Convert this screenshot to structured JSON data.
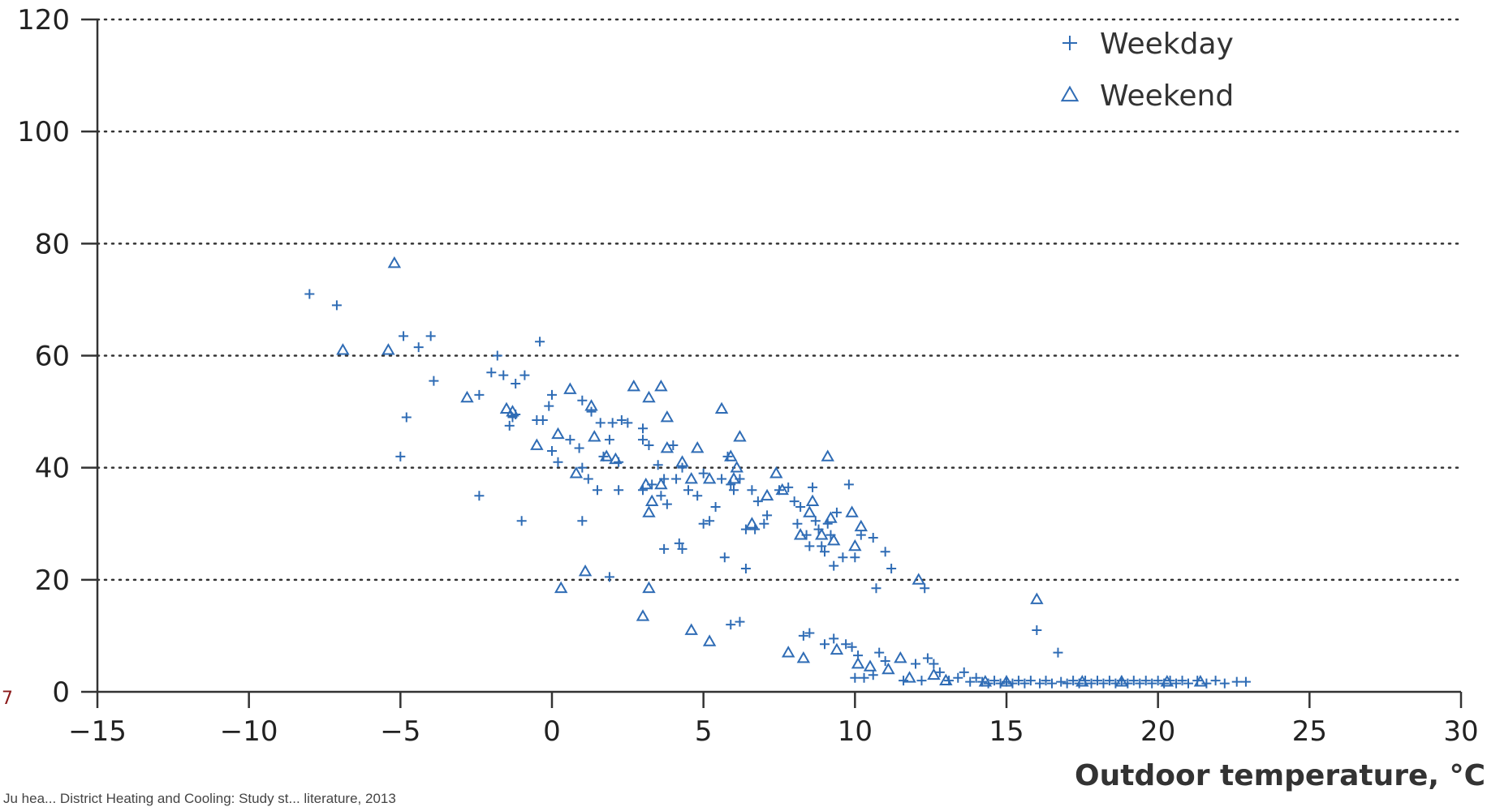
{
  "chart_data": {
    "type": "scatter",
    "title": "",
    "xlabel": "Outdoor temperature, °C",
    "ylabel": "",
    "xlim": [
      -15,
      30
    ],
    "ylim": [
      0,
      120
    ],
    "xticks": [
      -15,
      -10,
      -5,
      0,
      5,
      10,
      15,
      20,
      25,
      30
    ],
    "yticks": [
      0,
      20,
      40,
      60,
      80,
      100,
      120
    ],
    "xtick_labels": [
      "−15",
      "−10",
      "−5",
      "0",
      "5",
      "10",
      "15",
      "20",
      "25",
      "30"
    ],
    "ytick_labels": [
      "0",
      "20",
      "40",
      "60",
      "80",
      "100",
      "120"
    ],
    "grid": "horizontal dotted",
    "legend_position": "top-right",
    "series_color": "#2f6cb5",
    "series": [
      {
        "name": "Weekday",
        "marker": "plus",
        "points": [
          [
            -8.0,
            71
          ],
          [
            -7.1,
            69
          ],
          [
            -4.9,
            63.5
          ],
          [
            -4.4,
            61.5
          ],
          [
            -4.0,
            63.5
          ],
          [
            -3.9,
            55.5
          ],
          [
            -4.8,
            49
          ],
          [
            -5.0,
            42
          ],
          [
            -2.4,
            35
          ],
          [
            -2.4,
            53
          ],
          [
            -1.8,
            60
          ],
          [
            -1.6,
            56.5
          ],
          [
            -2.0,
            57
          ],
          [
            -1.2,
            55
          ],
          [
            -0.9,
            56.5
          ],
          [
            -1.3,
            49
          ],
          [
            -1.2,
            49.5
          ],
          [
            -1.4,
            47.5
          ],
          [
            -1.0,
            30.5
          ],
          [
            -0.4,
            62.5
          ],
          [
            -0.3,
            48.5
          ],
          [
            -0.5,
            48.5
          ],
          [
            -0.1,
            51
          ],
          [
            0.0,
            53
          ],
          [
            0.0,
            43
          ],
          [
            0.2,
            41
          ],
          [
            0.6,
            45
          ],
          [
            0.9,
            43.5
          ],
          [
            1.0,
            30.5
          ],
          [
            1.0,
            52
          ],
          [
            1.3,
            50
          ],
          [
            1.0,
            40
          ],
          [
            1.2,
            38
          ],
          [
            1.5,
            36
          ],
          [
            1.6,
            48
          ],
          [
            1.7,
            42
          ],
          [
            1.9,
            45
          ],
          [
            2.0,
            48
          ],
          [
            2.2,
            41
          ],
          [
            2.3,
            48.5
          ],
          [
            2.2,
            36
          ],
          [
            1.9,
            20.5
          ],
          [
            2.5,
            48
          ],
          [
            3.0,
            47
          ],
          [
            3.0,
            45
          ],
          [
            3.2,
            44
          ],
          [
            3.0,
            36
          ],
          [
            3.3,
            37
          ],
          [
            3.5,
            40.5
          ],
          [
            3.7,
            38
          ],
          [
            3.6,
            35
          ],
          [
            3.8,
            33.5
          ],
          [
            4.0,
            44
          ],
          [
            4.1,
            38
          ],
          [
            4.3,
            40
          ],
          [
            4.5,
            36
          ],
          [
            4.8,
            35
          ],
          [
            5.0,
            39
          ],
          [
            5.0,
            30
          ],
          [
            5.2,
            30.5
          ],
          [
            5.4,
            33
          ],
          [
            5.6,
            38
          ],
          [
            5.8,
            42
          ],
          [
            5.9,
            37
          ],
          [
            6.0,
            36
          ],
          [
            6.2,
            38
          ],
          [
            6.4,
            29
          ],
          [
            6.7,
            29
          ],
          [
            6.6,
            36
          ],
          [
            6.8,
            34
          ],
          [
            7.0,
            30
          ],
          [
            7.1,
            31.5
          ],
          [
            5.7,
            24
          ],
          [
            3.7,
            25.5
          ],
          [
            4.2,
            26.5
          ],
          [
            4.3,
            25.5
          ],
          [
            6.4,
            22
          ],
          [
            5.9,
            12
          ],
          [
            6.2,
            12.5
          ],
          [
            7.5,
            36
          ],
          [
            7.8,
            36.5
          ],
          [
            8.0,
            34
          ],
          [
            8.1,
            30
          ],
          [
            8.2,
            33
          ],
          [
            8.4,
            28
          ],
          [
            8.5,
            26
          ],
          [
            8.6,
            36.5
          ],
          [
            8.7,
            30.5
          ],
          [
            8.8,
            29
          ],
          [
            8.9,
            26
          ],
          [
            9.0,
            25
          ],
          [
            9.1,
            30
          ],
          [
            9.2,
            28
          ],
          [
            9.3,
            22.5
          ],
          [
            9.4,
            32
          ],
          [
            9.6,
            24
          ],
          [
            9.8,
            37
          ],
          [
            10.0,
            24
          ],
          [
            10.2,
            28
          ],
          [
            10.6,
            27.5
          ],
          [
            10.7,
            18.5
          ],
          [
            11.0,
            25
          ],
          [
            11.2,
            22
          ],
          [
            12.3,
            18.5
          ],
          [
            8.3,
            10
          ],
          [
            8.5,
            10.5
          ],
          [
            9.0,
            8.5
          ],
          [
            9.3,
            9.5
          ],
          [
            9.7,
            8.5
          ],
          [
            9.9,
            8
          ],
          [
            10.1,
            6.5
          ],
          [
            10.0,
            2.5
          ],
          [
            10.3,
            2.5
          ],
          [
            10.6,
            3
          ],
          [
            10.8,
            7
          ],
          [
            11.0,
            5.5
          ],
          [
            11.6,
            2
          ],
          [
            12.0,
            5
          ],
          [
            12.2,
            2
          ],
          [
            12.4,
            6
          ],
          [
            12.6,
            5
          ],
          [
            12.8,
            3.5
          ],
          [
            13.1,
            2
          ],
          [
            13.4,
            2.5
          ],
          [
            13.6,
            3.5
          ],
          [
            13.8,
            1.8
          ],
          [
            14.0,
            2.5
          ],
          [
            14.2,
            1.8
          ],
          [
            14.4,
            1.5
          ],
          [
            14.6,
            2
          ],
          [
            14.8,
            1.5
          ],
          [
            15.0,
            1.8
          ],
          [
            15.2,
            1.5
          ],
          [
            15.4,
            2
          ],
          [
            15.6,
            1.5
          ],
          [
            15.8,
            2
          ],
          [
            16.0,
            11
          ],
          [
            16.1,
            1.5
          ],
          [
            16.3,
            2
          ],
          [
            16.5,
            1.5
          ],
          [
            16.7,
            7
          ],
          [
            16.8,
            1.8
          ],
          [
            17.0,
            1.5
          ],
          [
            17.2,
            2
          ],
          [
            17.4,
            1.5
          ],
          [
            17.6,
            2
          ],
          [
            17.8,
            1.5
          ],
          [
            18.0,
            2
          ],
          [
            18.2,
            1.5
          ],
          [
            18.4,
            2
          ],
          [
            18.6,
            1.5
          ],
          [
            18.8,
            2
          ],
          [
            19.0,
            1.5
          ],
          [
            19.2,
            2
          ],
          [
            19.4,
            1.5
          ],
          [
            19.6,
            2
          ],
          [
            19.8,
            1.5
          ],
          [
            20.0,
            2
          ],
          [
            20.2,
            1.5
          ],
          [
            20.4,
            2
          ],
          [
            20.6,
            1.5
          ],
          [
            20.8,
            2
          ],
          [
            21.0,
            1.5
          ],
          [
            21.3,
            2
          ],
          [
            21.6,
            1.5
          ],
          [
            21.9,
            2
          ],
          [
            22.2,
            1.5
          ],
          [
            22.6,
            1.8
          ],
          [
            22.9,
            1.8
          ]
        ]
      },
      {
        "name": "Weekend",
        "marker": "triangle",
        "points": [
          [
            -5.2,
            76.5
          ],
          [
            -6.9,
            61
          ],
          [
            -5.4,
            61
          ],
          [
            -2.8,
            52.5
          ],
          [
            -1.5,
            50.5
          ],
          [
            -1.3,
            50
          ],
          [
            0.6,
            54
          ],
          [
            1.3,
            51
          ],
          [
            0.2,
            46
          ],
          [
            -0.5,
            44
          ],
          [
            1.4,
            45.5
          ],
          [
            0.8,
            39
          ],
          [
            1.8,
            42
          ],
          [
            2.1,
            41.5
          ],
          [
            2.7,
            54.5
          ],
          [
            3.2,
            52.5
          ],
          [
            3.6,
            54.5
          ],
          [
            3.8,
            49
          ],
          [
            3.1,
            37
          ],
          [
            3.3,
            34
          ],
          [
            3.2,
            32
          ],
          [
            3.6,
            37
          ],
          [
            3.8,
            43.5
          ],
          [
            4.3,
            41
          ],
          [
            4.6,
            38
          ],
          [
            4.8,
            43.5
          ],
          [
            5.2,
            38
          ],
          [
            5.6,
            50.5
          ],
          [
            5.9,
            42
          ],
          [
            6.2,
            45.5
          ],
          [
            6.1,
            40
          ],
          [
            6.0,
            38
          ],
          [
            6.6,
            30
          ],
          [
            7.1,
            35
          ],
          [
            7.4,
            39
          ],
          [
            7.6,
            36
          ],
          [
            8.2,
            28
          ],
          [
            8.5,
            32
          ],
          [
            8.6,
            34
          ],
          [
            8.9,
            28
          ],
          [
            9.1,
            42
          ],
          [
            9.2,
            31
          ],
          [
            9.3,
            27
          ],
          [
            9.9,
            32
          ],
          [
            10.0,
            26
          ],
          [
            10.2,
            29.5
          ],
          [
            12.1,
            20
          ],
          [
            1.1,
            21.5
          ],
          [
            0.3,
            18.5
          ],
          [
            3.2,
            18.5
          ],
          [
            3.0,
            13.5
          ],
          [
            4.6,
            11
          ],
          [
            5.2,
            9
          ],
          [
            7.8,
            7
          ],
          [
            8.3,
            6
          ],
          [
            9.4,
            7.5
          ],
          [
            10.1,
            5
          ],
          [
            10.5,
            4.5
          ],
          [
            11.1,
            4
          ],
          [
            11.5,
            6
          ],
          [
            11.8,
            2.5
          ],
          [
            12.6,
            3
          ],
          [
            13.0,
            2
          ],
          [
            15.0,
            1.8
          ],
          [
            16.0,
            16.5
          ],
          [
            14.3,
            1.8
          ],
          [
            17.5,
            1.8
          ],
          [
            18.8,
            1.8
          ],
          [
            20.3,
            1.8
          ],
          [
            21.4,
            1.8
          ]
        ]
      }
    ]
  },
  "footnote": "Ju hea... District Heating and Cooling: Study st... literature, 2013",
  "edge_mark": "7"
}
